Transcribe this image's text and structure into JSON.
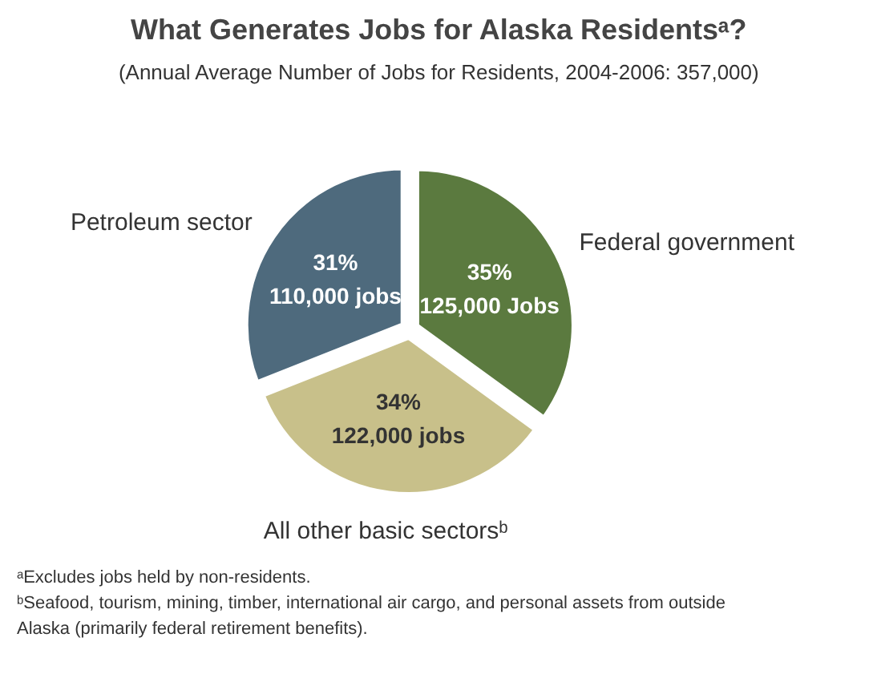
{
  "chart_data": {
    "type": "pie",
    "title": "What Generates Jobs for Alaska Residentsᵃ?",
    "subtitle": "(Annual Average Number of Jobs for Residents, 2004-2006: 357,000)",
    "categories": [
      "Federal government",
      "All other basic sectorsᵇ",
      "Petroleum sector"
    ],
    "values": [
      35,
      34,
      31
    ],
    "colors": [
      "#5b7a3f",
      "#c8c08a",
      "#4e6a7d"
    ],
    "value_labels": [
      "35%\n125,000 Jobs",
      "34%\n122,000 jobs",
      "31%\n110,000 jobs"
    ],
    "annotations": [
      "ᵃExcludes jobs held by non-residents.",
      "ᵇSeafood, tourism, mining, timber, international air cargo, and personal assets from outside Alaska (primarily federal retirement benefits)."
    ]
  }
}
